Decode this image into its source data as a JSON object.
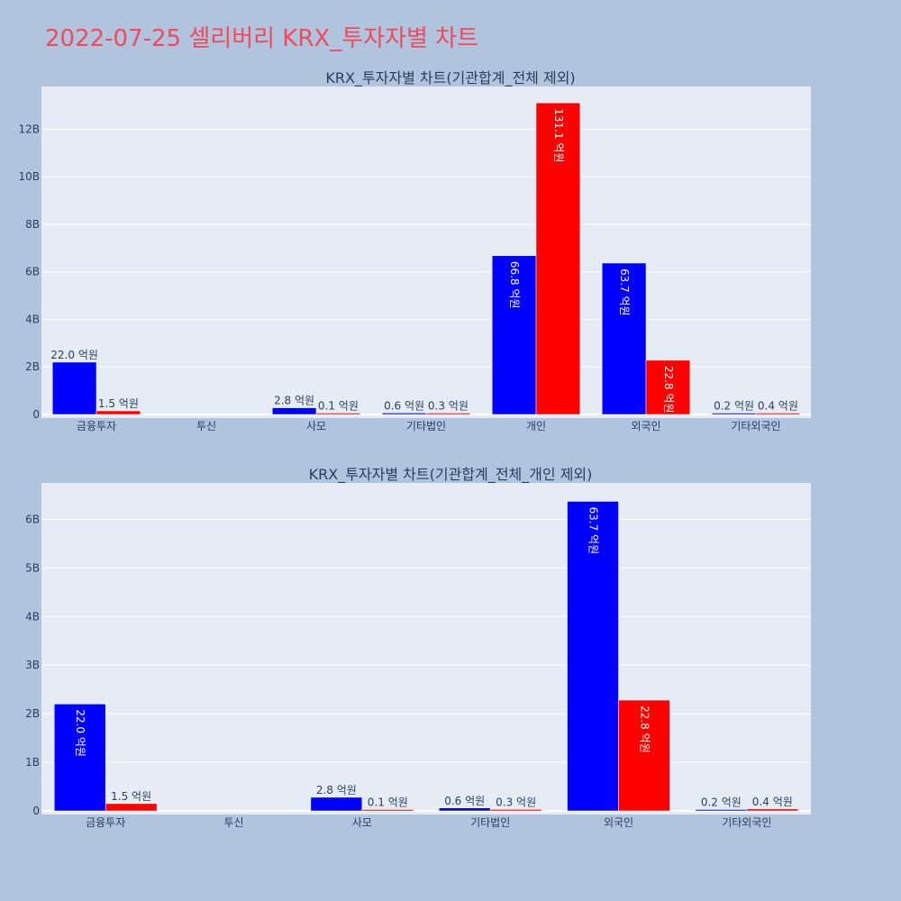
{
  "page": {
    "title": "2022-07-25 셀리버리 KRX_투자자별 차트"
  },
  "colors": {
    "background": "#b0c4de",
    "plot_bg": "#e5ecf6",
    "title": "#ef4b5d",
    "series_1": "#0000ff",
    "series_2": "#ff0000"
  },
  "chart_data": [
    {
      "type": "bar",
      "title": "KRX_투자자별 차트(기관합계_전체 제외)",
      "categories": [
        "금융투자",
        "투신",
        "사모",
        "기타법인",
        "개인",
        "외국인",
        "기타외국인"
      ],
      "series": [
        {
          "values": [
            2200000000,
            0,
            280000000,
            60000000,
            6680000000,
            6370000000,
            20000000
          ],
          "labels": [
            "22.0 억원",
            "",
            "2.8 억원",
            "0.6 억원",
            "66.8 억원",
            "63.7 억원",
            "0.2 억원"
          ]
        },
        {
          "values": [
            150000000,
            0,
            10000000,
            30000000,
            13110000000,
            2280000000,
            40000000
          ],
          "labels": [
            "1.5 억원",
            "",
            "0.1 억원",
            "0.3 억원",
            "131.1 억원",
            "22.8 억원",
            "0.4 억원"
          ]
        }
      ],
      "y_ticks": [
        "0",
        "2B",
        "4B",
        "6B",
        "8B",
        "10B",
        "12B"
      ],
      "y_tick_values": [
        0,
        2000000000,
        4000000000,
        6000000000,
        8000000000,
        10000000000,
        12000000000
      ],
      "ylim": [
        0,
        13800000000
      ],
      "grid": true
    },
    {
      "type": "bar",
      "title": "KRX_투자자별 차트(기관합계_전체_개인 제외)",
      "categories": [
        "금융투자",
        "투신",
        "사모",
        "기타법인",
        "외국인",
        "기타외국인"
      ],
      "series": [
        {
          "values": [
            2200000000,
            0,
            280000000,
            60000000,
            6370000000,
            20000000
          ],
          "labels": [
            "22.0 억원",
            "",
            "2.8 억원",
            "0.6 억원",
            "63.7 억원",
            "0.2 억원"
          ]
        },
        {
          "values": [
            150000000,
            0,
            10000000,
            30000000,
            2280000000,
            40000000
          ],
          "labels": [
            "1.5 억원",
            "",
            "0.1 억원",
            "0.3 억원",
            "22.8 억원",
            "0.4 억원"
          ]
        }
      ],
      "y_ticks": [
        "0",
        "1B",
        "2B",
        "3B",
        "4B",
        "5B",
        "6B"
      ],
      "y_tick_values": [
        0,
        1000000000,
        2000000000,
        3000000000,
        4000000000,
        5000000000,
        6000000000
      ],
      "ylim": [
        0,
        6750000000
      ],
      "grid": true
    }
  ]
}
